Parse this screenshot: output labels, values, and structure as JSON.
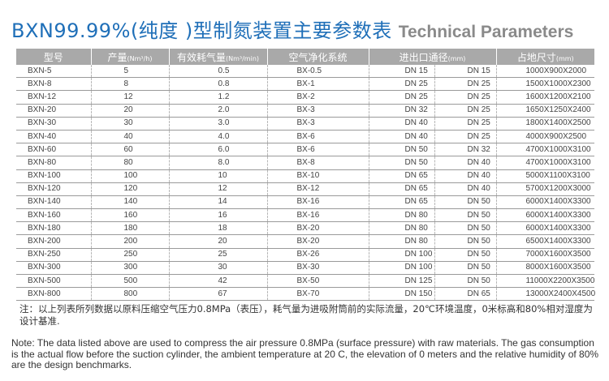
{
  "title": {
    "cn": "BXN99.99%(纯度 )型制氮装置主要参数表",
    "en": "Technical Parameters"
  },
  "headers": {
    "model": "型号",
    "capacity": "产量",
    "capacity_unit": "(Nm³/h)",
    "air": "有效耗气量",
    "air_unit": "(Nm³/min)",
    "system": "空气净化系统",
    "ports": "进出口通径",
    "ports_unit": "(mm)",
    "floor": "占地尺寸",
    "floor_unit": "(mm)"
  },
  "rows": [
    {
      "model": "BXN-5",
      "capacity": "5",
      "air": "0.5",
      "system": "BX-0.5",
      "inlet": "DN 15",
      "outlet": "DN 15",
      "floor": "1000X900X2000"
    },
    {
      "model": "BXN-8",
      "capacity": "8",
      "air": "0.8",
      "system": "BX-1",
      "inlet": "DN 25",
      "outlet": "DN 25",
      "floor": "1500X1000X2300"
    },
    {
      "model": "BXN-12",
      "capacity": "12",
      "air": "1.2",
      "system": "BX-2",
      "inlet": "DN 25",
      "outlet": "DN 25",
      "floor": "1600X1200X2100"
    },
    {
      "model": "BXN-20",
      "capacity": "20",
      "air": "2.0",
      "system": "BX-3",
      "inlet": "DN 32",
      "outlet": "DN 25",
      "floor": "1650X1250X2400"
    },
    {
      "model": "BXN-30",
      "capacity": "30",
      "air": "3.0",
      "system": "BX-3",
      "inlet": "DN 40",
      "outlet": "DN 25",
      "floor": "1800X1400X2500"
    },
    {
      "model": "BXN-40",
      "capacity": "40",
      "air": "4.0",
      "system": "BX-6",
      "inlet": "DN 40",
      "outlet": "DN 25",
      "floor": "4000X900X2500"
    },
    {
      "model": "BXN-60",
      "capacity": "60",
      "air": "6.0",
      "system": "BX-6",
      "inlet": "DN 50",
      "outlet": "DN 32",
      "floor": "4700X1000X3100"
    },
    {
      "model": "BXN-80",
      "capacity": "80",
      "air": "8.0",
      "system": "BX-8",
      "inlet": "DN 50",
      "outlet": "DN 40",
      "floor": "4700X1000X3100"
    },
    {
      "model": "BXN-100",
      "capacity": "100",
      "air": "10",
      "system": "BX-10",
      "inlet": "DN 65",
      "outlet": "DN 40",
      "floor": "5000X1100X3100"
    },
    {
      "model": "BXN-120",
      "capacity": "120",
      "air": "12",
      "system": "BX-12",
      "inlet": "DN 65",
      "outlet": "DN 40",
      "floor": "5700X1200X3000"
    },
    {
      "model": "BXN-140",
      "capacity": "140",
      "air": "14",
      "system": "BX-16",
      "inlet": "DN 65",
      "outlet": "DN 50",
      "floor": "6000X1400X3300"
    },
    {
      "model": "BXN-160",
      "capacity": "160",
      "air": "16",
      "system": "BX-16",
      "inlet": "DN 80",
      "outlet": "DN 50",
      "floor": "6000X1400X3300"
    },
    {
      "model": "BXN-180",
      "capacity": "180",
      "air": "18",
      "system": "BX-20",
      "inlet": "DN 80",
      "outlet": "DN 50",
      "floor": "6000X1400X3300"
    },
    {
      "model": "BXN-200",
      "capacity": "200",
      "air": "20",
      "system": "BX-20",
      "inlet": "DN 80",
      "outlet": "DN 50",
      "floor": "6500X1400X3300"
    },
    {
      "model": "BXN-250",
      "capacity": "250",
      "air": "25",
      "system": "BX-26",
      "inlet": "DN 100",
      "outlet": "DN 50",
      "floor": "7000X1600X3500"
    },
    {
      "model": "BXN-300",
      "capacity": "300",
      "air": "30",
      "system": "BX-30",
      "inlet": "DN 100",
      "outlet": "DN 50",
      "floor": "8000X1600X3500"
    },
    {
      "model": "BXN-500",
      "capacity": "500",
      "air": "42",
      "system": "BX-50",
      "inlet": "DN 125",
      "outlet": "DN 50",
      "floor": "11000X2200X3500"
    },
    {
      "model": "BXN-800",
      "capacity": "800",
      "air": "67",
      "system": "BX-70",
      "inlet": "DN 150",
      "outlet": "DN 65",
      "floor": "13000X2400X4500"
    }
  ],
  "notes": {
    "cn": "注：以上列表所列数据以原料压缩空气压力0.8MPa（表压），耗气量为进吸附筒前的实际流量，20℃环境温度，0米标高和80%相对湿度为设计基准.",
    "en": "Note: The data listed above are used to compress the air pressure 0.8MPa (surface pressure) with raw materials. The gas consumption is the actual flow before the suction cylinder, the ambient temperature at 20 C, the elevation of 0 meters and the relative humidity of 80% are the design benchmarks."
  }
}
